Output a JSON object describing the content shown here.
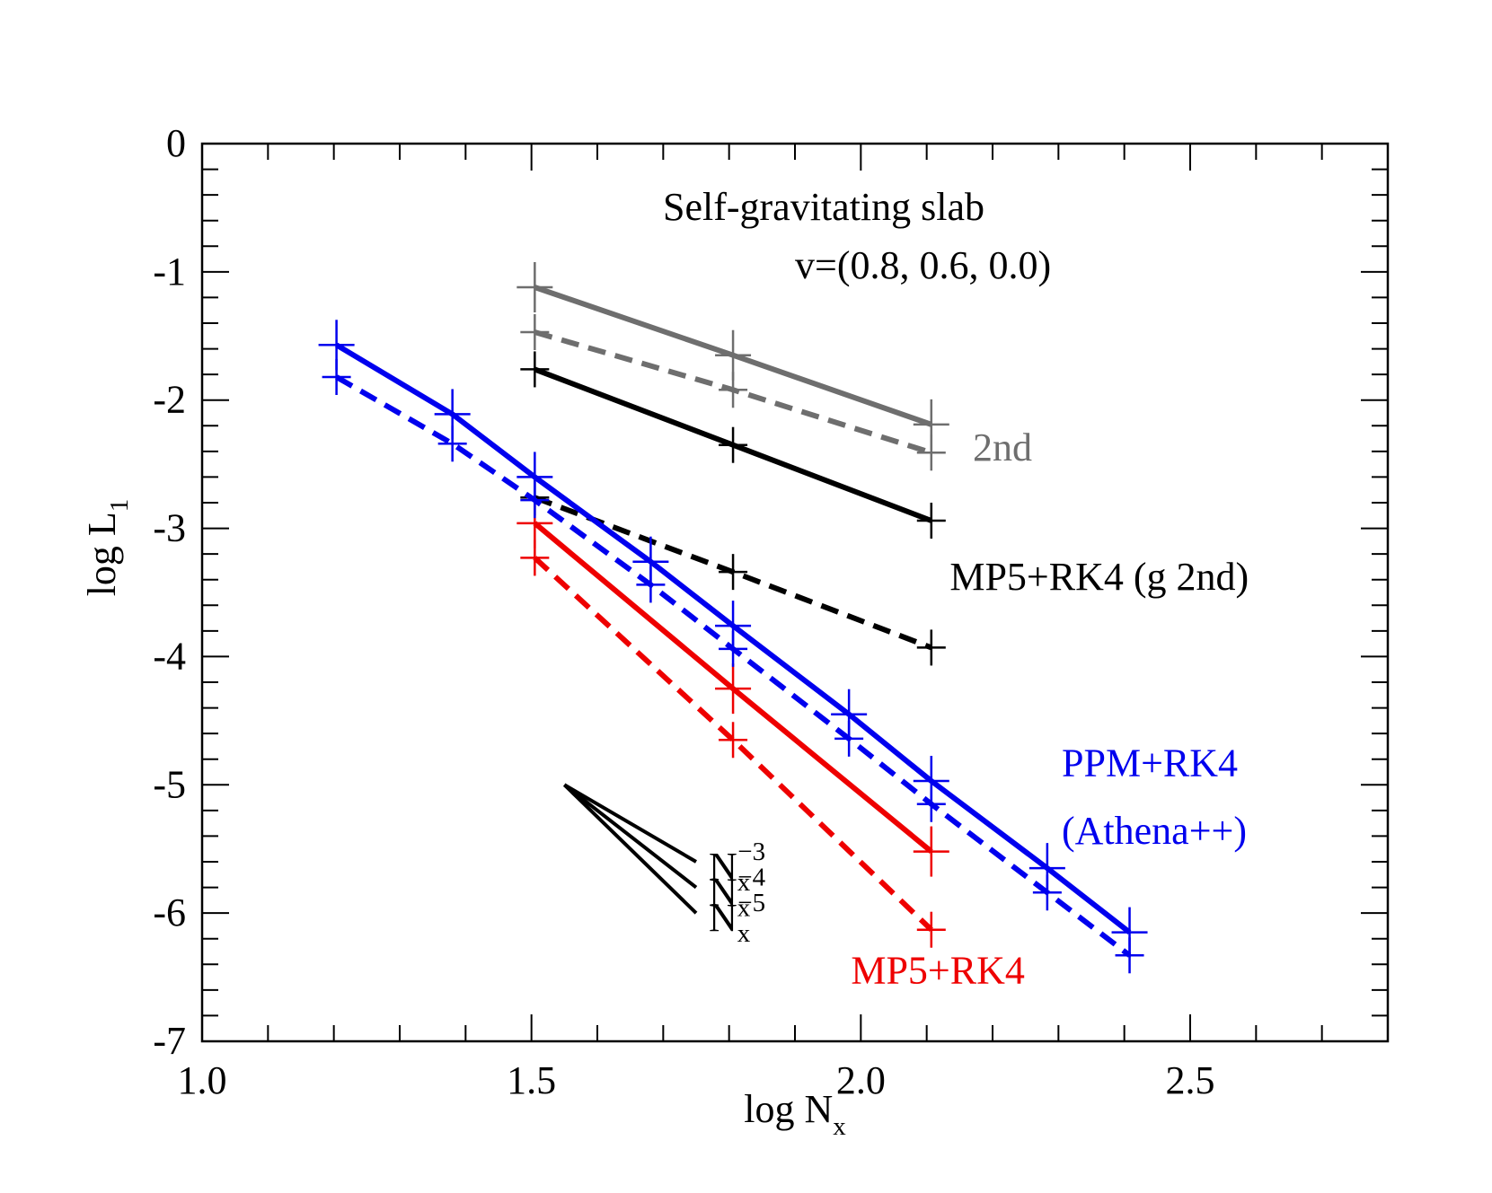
{
  "chart_data": {
    "type": "line",
    "title": "Self-gravitating slab",
    "subtitle": "v=(0.8, 0.6, 0.0)",
    "xlabel": {
      "main": "log N",
      "sub": "x"
    },
    "ylabel": {
      "main": "log L",
      "sub": "1"
    },
    "xlim": [
      1.0,
      2.8
    ],
    "ylim": [
      -7,
      0
    ],
    "xticks": [
      {
        "value": 1.0,
        "label": "1.0"
      },
      {
        "value": 1.5,
        "label": "1.5"
      },
      {
        "value": 2.0,
        "label": "2.0"
      },
      {
        "value": 2.5,
        "label": "2.5"
      }
    ],
    "yticks": [
      {
        "value": 0,
        "label": "0"
      },
      {
        "value": -1,
        "label": "-1"
      },
      {
        "value": -2,
        "label": "-2"
      },
      {
        "value": -3,
        "label": "-3"
      },
      {
        "value": -4,
        "label": "-4"
      },
      {
        "value": -5,
        "label": "-5"
      },
      {
        "value": -6,
        "label": "-6"
      },
      {
        "value": -7,
        "label": "-7"
      }
    ],
    "series": [
      {
        "name": "2nd (solid)",
        "color": "#6e6e6e",
        "dash": false,
        "marker": "large",
        "x": [
          1.505,
          1.806,
          2.107
        ],
        "y": [
          -1.12,
          -1.65,
          -2.19
        ]
      },
      {
        "name": "2nd (dashed)",
        "color": "#6e6e6e",
        "dash": true,
        "marker": "small",
        "x": [
          1.505,
          1.806,
          2.107
        ],
        "y": [
          -1.47,
          -1.92,
          -2.41
        ]
      },
      {
        "name": "MP5+RK4 (g 2nd) (solid)",
        "color": "#000000",
        "dash": false,
        "marker": "small",
        "x": [
          1.505,
          1.806,
          2.107
        ],
        "y": [
          -1.76,
          -2.35,
          -2.94
        ]
      },
      {
        "name": "MP5+RK4 (g 2nd) (dashed)",
        "color": "#000000",
        "dash": true,
        "marker": "small",
        "x": [
          1.505,
          1.806,
          2.107
        ],
        "y": [
          -2.76,
          -3.34,
          -3.93
        ]
      },
      {
        "name": "MP5+RK4 (solid)",
        "color": "#ee0000",
        "dash": false,
        "marker": "large",
        "x": [
          1.505,
          1.806,
          2.107
        ],
        "y": [
          -2.96,
          -4.25,
          -5.52
        ]
      },
      {
        "name": "MP5+RK4 (dashed)",
        "color": "#ee0000",
        "dash": true,
        "marker": "small",
        "x": [
          1.505,
          1.806,
          2.107
        ],
        "y": [
          -3.23,
          -4.65,
          -6.13
        ]
      },
      {
        "name": "PPM+RK4 (Athena++) (solid)",
        "color": "#0000ee",
        "dash": false,
        "marker": "large",
        "x": [
          1.204,
          1.38,
          1.505,
          1.681,
          1.806,
          1.982,
          2.107,
          2.283,
          2.408
        ],
        "y": [
          -1.57,
          -2.11,
          -2.6,
          -3.26,
          -3.76,
          -4.45,
          -4.97,
          -5.65,
          -6.15
        ]
      },
      {
        "name": "PPM+RK4 (Athena++) (dashed)",
        "color": "#0000ee",
        "dash": true,
        "marker": "small",
        "x": [
          1.204,
          1.38,
          1.505,
          1.681,
          1.806,
          1.982,
          2.107,
          2.283,
          2.408
        ],
        "y": [
          -1.82,
          -2.34,
          -2.78,
          -3.44,
          -3.94,
          -4.64,
          -5.15,
          -5.84,
          -6.33
        ]
      }
    ],
    "annotations": [
      {
        "text": "2nd",
        "color": "#6e6e6e",
        "x": 2.17,
        "y": -2.47
      },
      {
        "text": "MP5+RK4 (g 2nd)",
        "color": "#000000",
        "x": 2.135,
        "y": -3.48
      },
      {
        "text": "PPM+RK4",
        "color": "#0000ee",
        "x": 2.305,
        "y": -4.93
      },
      {
        "text": "(Athena++)",
        "color": "#0000ee",
        "x": 2.305,
        "y": -5.46
      },
      {
        "text": "MP5+RK4",
        "color": "#ee0000",
        "x": 1.985,
        "y": -6.55
      }
    ],
    "slope_guides": {
      "origin": {
        "x": 1.55,
        "y": -5.0
      },
      "x_end": 1.75,
      "lines": [
        {
          "slope": -3,
          "label": "N",
          "sub": "x",
          "sup": "−3"
        },
        {
          "slope": -4,
          "label": "N",
          "sub": "x",
          "sup": "−4"
        },
        {
          "slope": -5,
          "label": "N",
          "sub": "x",
          "sup": "−5"
        }
      ]
    }
  }
}
